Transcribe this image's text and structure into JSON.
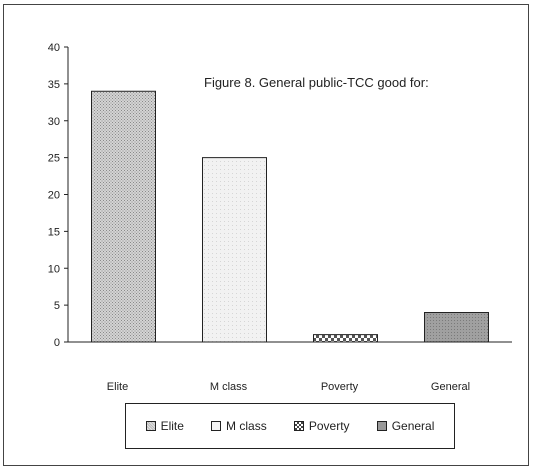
{
  "chart_data": {
    "type": "bar",
    "title": "Figure 8. General public-TCC good for:",
    "categories": [
      "Elite",
      "M class",
      "Poverty",
      "General"
    ],
    "values": [
      34,
      25,
      1,
      4
    ],
    "ylim": [
      0,
      40
    ],
    "yticks": [
      0,
      5,
      10,
      15,
      20,
      25,
      30,
      35,
      40
    ],
    "grid": false,
    "legend_placement": "bottom",
    "legend": [
      "Elite",
      "M class",
      "Poverty",
      "General"
    ],
    "colors": [
      "#c8c8c8",
      "#f4f4f4",
      "#dcdcdc",
      "#9a9a9a"
    ],
    "patterns": [
      "dotted",
      "light",
      "checker",
      "solid"
    ]
  }
}
